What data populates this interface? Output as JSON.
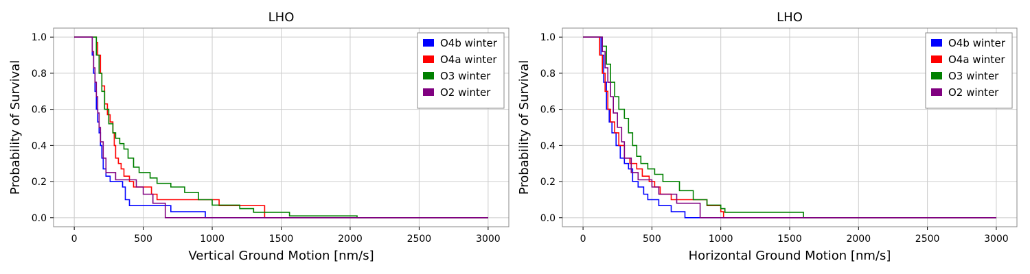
{
  "chart_data": [
    {
      "type": "line",
      "title": "LHO",
      "xlabel": "Vertical Ground Motion [nm/s]",
      "ylabel": "Probability of Survival",
      "xlim": [
        -150,
        3150
      ],
      "ylim": [
        -0.05,
        1.05
      ],
      "xticks": [
        "0",
        "500",
        "1000",
        "1500",
        "2000",
        "2500",
        "3000"
      ],
      "yticks": [
        "0.0",
        "0.2",
        "0.4",
        "0.6",
        "0.8",
        "1.0"
      ],
      "grid": true,
      "legend": "top-right",
      "series": [
        {
          "name": "O4b winter",
          "color": "#0000ff",
          "x": [
            0,
            120,
            130,
            140,
            150,
            160,
            170,
            180,
            190,
            200,
            210,
            230,
            260,
            300,
            350,
            370,
            400,
            500,
            700,
            950,
            3000
          ],
          "y": [
            1.0,
            1.0,
            0.9,
            0.8,
            0.7,
            0.6,
            0.53,
            0.47,
            0.4,
            0.33,
            0.27,
            0.23,
            0.2,
            0.2,
            0.17,
            0.1,
            0.067,
            0.067,
            0.033,
            0.0,
            0.0
          ]
        },
        {
          "name": "O4a winter",
          "color": "#ff0000",
          "x": [
            0,
            140,
            160,
            170,
            190,
            200,
            220,
            240,
            260,
            280,
            290,
            300,
            320,
            340,
            360,
            400,
            430,
            480,
            560,
            600,
            720,
            1050,
            1380,
            3000
          ],
          "y": [
            1.0,
            1.0,
            0.97,
            0.9,
            0.8,
            0.73,
            0.63,
            0.57,
            0.53,
            0.47,
            0.4,
            0.33,
            0.3,
            0.27,
            0.23,
            0.2,
            0.17,
            0.17,
            0.13,
            0.1,
            0.1,
            0.067,
            0.0,
            0.0
          ]
        },
        {
          "name": "O3 winter",
          "color": "#008000",
          "x": [
            0,
            140,
            160,
            180,
            200,
            220,
            250,
            280,
            300,
            330,
            360,
            390,
            430,
            470,
            550,
            600,
            700,
            800,
            900,
            1000,
            1200,
            1300,
            1560,
            2050,
            3000
          ],
          "y": [
            1.0,
            1.0,
            0.9,
            0.8,
            0.7,
            0.6,
            0.52,
            0.47,
            0.44,
            0.41,
            0.38,
            0.33,
            0.28,
            0.25,
            0.22,
            0.19,
            0.17,
            0.14,
            0.1,
            0.07,
            0.05,
            0.03,
            0.01,
            0.0,
            0.0
          ]
        },
        {
          "name": "O2 winter",
          "color": "#800080",
          "x": [
            0,
            120,
            130,
            140,
            150,
            160,
            170,
            180,
            190,
            210,
            230,
            300,
            400,
            450,
            500,
            570,
            660,
            3000
          ],
          "y": [
            1.0,
            1.0,
            0.92,
            0.83,
            0.75,
            0.67,
            0.58,
            0.5,
            0.42,
            0.33,
            0.25,
            0.21,
            0.21,
            0.17,
            0.13,
            0.08,
            0.0,
            0.0
          ]
        }
      ]
    },
    {
      "type": "line",
      "title": "LHO",
      "xlabel": "Horizontal Ground Motion [nm/s]",
      "ylabel": "Probability of Survival",
      "xlim": [
        -150,
        3150
      ],
      "ylim": [
        -0.05,
        1.05
      ],
      "xticks": [
        "0",
        "500",
        "1000",
        "1500",
        "2000",
        "2500",
        "3000"
      ],
      "yticks": [
        "0.0",
        "0.2",
        "0.4",
        "0.6",
        "0.8",
        "1.0"
      ],
      "grid": true,
      "legend": "top-right",
      "series": [
        {
          "name": "O4b winter",
          "color": "#0000ff",
          "x": [
            0,
            110,
            130,
            150,
            170,
            190,
            210,
            240,
            270,
            300,
            330,
            360,
            400,
            440,
            470,
            550,
            640,
            740,
            3000
          ],
          "y": [
            1.0,
            1.0,
            0.9,
            0.75,
            0.6,
            0.53,
            0.47,
            0.4,
            0.33,
            0.3,
            0.27,
            0.2,
            0.17,
            0.13,
            0.1,
            0.067,
            0.033,
            0.0,
            0.0
          ]
        },
        {
          "name": "O4a winter",
          "color": "#ff0000",
          "x": [
            0,
            100,
            120,
            140,
            160,
            180,
            200,
            230,
            260,
            300,
            340,
            390,
            430,
            480,
            520,
            560,
            640,
            700,
            900,
            1000,
            1020,
            3000
          ],
          "y": [
            1.0,
            1.0,
            0.9,
            0.8,
            0.7,
            0.6,
            0.53,
            0.47,
            0.4,
            0.33,
            0.3,
            0.27,
            0.23,
            0.2,
            0.17,
            0.13,
            0.1,
            0.1,
            0.067,
            0.033,
            0.0,
            0.0
          ]
        },
        {
          "name": "O3 winter",
          "color": "#008000",
          "x": [
            0,
            120,
            140,
            170,
            200,
            230,
            260,
            300,
            330,
            360,
            390,
            420,
            470,
            520,
            580,
            700,
            800,
            900,
            1000,
            1030,
            1580,
            1600,
            3000
          ],
          "y": [
            1.0,
            1.0,
            0.95,
            0.85,
            0.75,
            0.67,
            0.6,
            0.55,
            0.47,
            0.4,
            0.34,
            0.3,
            0.27,
            0.24,
            0.2,
            0.15,
            0.1,
            0.07,
            0.05,
            0.03,
            0.03,
            0.0,
            0.0
          ]
        },
        {
          "name": "O2 winter",
          "color": "#800080",
          "x": [
            0,
            120,
            140,
            160,
            180,
            200,
            220,
            250,
            280,
            300,
            350,
            400,
            500,
            550,
            680,
            850,
            3000
          ],
          "y": [
            1.0,
            1.0,
            0.92,
            0.83,
            0.75,
            0.67,
            0.58,
            0.5,
            0.42,
            0.33,
            0.25,
            0.21,
            0.17,
            0.13,
            0.08,
            0.0,
            0.0
          ]
        }
      ]
    }
  ]
}
